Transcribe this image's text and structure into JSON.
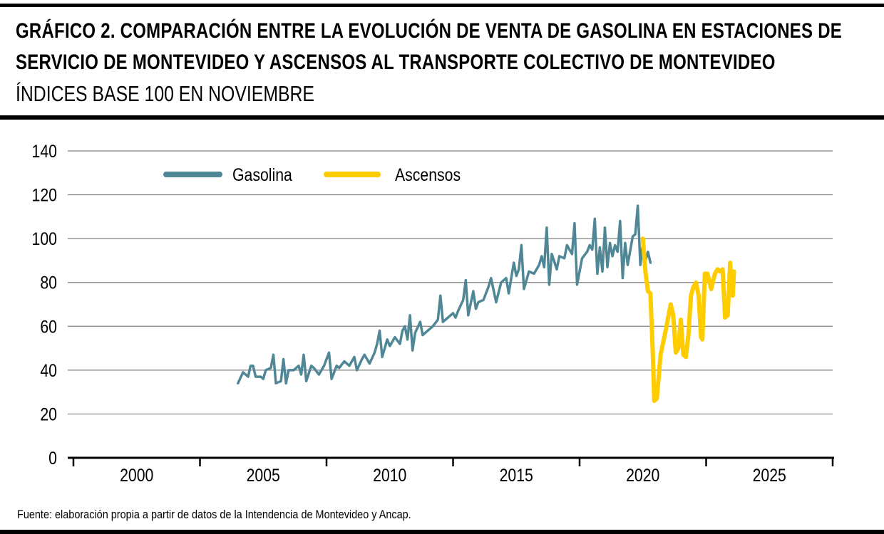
{
  "title": "GRÁFICO 2. COMPARACIÓN ENTRE LA EVOLUCIÓN DE VENTA DE GASOLINA EN ESTACIONES DE SERVICIO DE MONTEVIDEO Y ASCENSOS AL TRANSPORTE COLECTIVO DE MONTEVIDEO",
  "subtitle": "ÍNDICES BASE 100 EN NOVIEMBRE",
  "source": "Fuente: elaboración propia a partir de datos de la Intendencia de Montevideo y Ancap.",
  "colors": {
    "gasolina": "#4f8796",
    "ascensos": "#ffcc00",
    "grid": "#808080",
    "axis": "#000000"
  },
  "chart_data": {
    "type": "line",
    "title": "GRÁFICO 2. COMPARACIÓN ENTRE LA EVOLUCIÓN DE VENTA DE GASOLINA EN ESTACIONES DE SERVICIO DE MONTEVIDEO Y ASCENSOS AL TRANSPORTE COLECTIVO DE MONTEVIDEO",
    "subtitle": "ÍNDICES BASE 100 EN NOVIEMBRE",
    "xlabel": "",
    "ylabel": "",
    "xlim": [
      1997.5,
      2027.5
    ],
    "ylim": [
      0,
      140
    ],
    "x_ticks": [
      2000,
      2005,
      2010,
      2015,
      2020,
      2025
    ],
    "y_ticks": [
      0,
      20,
      40,
      60,
      80,
      100,
      120,
      140
    ],
    "grid": true,
    "legend_position": "top-left",
    "series": [
      {
        "name": "Gasolina",
        "color": "#4f8796",
        "points": [
          [
            2004.0,
            34
          ],
          [
            2004.2,
            39
          ],
          [
            2004.4,
            37
          ],
          [
            2004.5,
            42
          ],
          [
            2004.6,
            42
          ],
          [
            2004.7,
            37
          ],
          [
            2004.9,
            37
          ],
          [
            2005.0,
            36
          ],
          [
            2005.1,
            40
          ],
          [
            2005.3,
            41
          ],
          [
            2005.4,
            47
          ],
          [
            2005.5,
            34
          ],
          [
            2005.7,
            35
          ],
          [
            2005.8,
            45
          ],
          [
            2005.9,
            34
          ],
          [
            2006.0,
            40
          ],
          [
            2006.2,
            40
          ],
          [
            2006.4,
            42
          ],
          [
            2006.5,
            38
          ],
          [
            2006.6,
            47
          ],
          [
            2006.7,
            35
          ],
          [
            2006.9,
            42
          ],
          [
            2007.0,
            41
          ],
          [
            2007.2,
            38
          ],
          [
            2007.4,
            42
          ],
          [
            2007.6,
            48
          ],
          [
            2007.7,
            36
          ],
          [
            2007.9,
            42
          ],
          [
            2008.0,
            41
          ],
          [
            2008.2,
            44
          ],
          [
            2008.4,
            42
          ],
          [
            2008.6,
            46
          ],
          [
            2008.7,
            40
          ],
          [
            2008.9,
            45
          ],
          [
            2009.0,
            47
          ],
          [
            2009.2,
            43
          ],
          [
            2009.4,
            48
          ],
          [
            2009.5,
            52
          ],
          [
            2009.6,
            58
          ],
          [
            2009.7,
            46
          ],
          [
            2009.9,
            54
          ],
          [
            2010.0,
            51
          ],
          [
            2010.2,
            55
          ],
          [
            2010.4,
            52
          ],
          [
            2010.5,
            58
          ],
          [
            2010.6,
            60
          ],
          [
            2010.7,
            54
          ],
          [
            2010.8,
            65
          ],
          [
            2010.9,
            49
          ],
          [
            2011.0,
            57
          ],
          [
            2011.2,
            62
          ],
          [
            2011.3,
            56
          ],
          [
            2011.5,
            58
          ],
          [
            2011.7,
            60
          ],
          [
            2011.9,
            63
          ],
          [
            2012.0,
            74
          ],
          [
            2012.1,
            62
          ],
          [
            2012.3,
            64
          ],
          [
            2012.5,
            66
          ],
          [
            2012.6,
            64
          ],
          [
            2012.7,
            67
          ],
          [
            2012.9,
            72
          ],
          [
            2013.0,
            81
          ],
          [
            2013.1,
            65
          ],
          [
            2013.3,
            76
          ],
          [
            2013.4,
            68
          ],
          [
            2013.5,
            71
          ],
          [
            2013.7,
            72
          ],
          [
            2013.9,
            78
          ],
          [
            2014.0,
            82
          ],
          [
            2014.2,
            71
          ],
          [
            2014.4,
            80
          ],
          [
            2014.6,
            82
          ],
          [
            2014.7,
            75
          ],
          [
            2014.9,
            89
          ],
          [
            2015.0,
            83
          ],
          [
            2015.1,
            86
          ],
          [
            2015.2,
            97
          ],
          [
            2015.3,
            77
          ],
          [
            2015.5,
            85
          ],
          [
            2015.7,
            84
          ],
          [
            2015.9,
            88
          ],
          [
            2016.0,
            92
          ],
          [
            2016.1,
            87
          ],
          [
            2016.2,
            105
          ],
          [
            2016.3,
            79
          ],
          [
            2016.4,
            93
          ],
          [
            2016.6,
            86
          ],
          [
            2016.7,
            92
          ],
          [
            2016.9,
            91
          ],
          [
            2017.0,
            97
          ],
          [
            2017.2,
            93
          ],
          [
            2017.3,
            107
          ],
          [
            2017.4,
            79
          ],
          [
            2017.6,
            91
          ],
          [
            2017.8,
            94
          ],
          [
            2017.9,
            97
          ],
          [
            2018.0,
            95
          ],
          [
            2018.1,
            109
          ],
          [
            2018.2,
            84
          ],
          [
            2018.3,
            96
          ],
          [
            2018.4,
            85
          ],
          [
            2018.5,
            105
          ],
          [
            2018.6,
            87
          ],
          [
            2018.7,
            98
          ],
          [
            2018.8,
            92
          ],
          [
            2018.9,
            97
          ],
          [
            2019.0,
            94
          ],
          [
            2019.1,
            108
          ],
          [
            2019.2,
            82
          ],
          [
            2019.3,
            98
          ],
          [
            2019.4,
            88
          ],
          [
            2019.6,
            101
          ],
          [
            2019.7,
            102
          ],
          [
            2019.8,
            115
          ],
          [
            2019.9,
            88
          ],
          [
            2020.0,
            98
          ],
          [
            2020.1,
            90
          ],
          [
            2020.2,
            94
          ],
          [
            2020.3,
            89
          ]
        ]
      },
      {
        "name": "Ascensos",
        "color": "#ffcc00",
        "points": [
          [
            2020.0,
            100
          ],
          [
            2020.1,
            85
          ],
          [
            2020.2,
            76
          ],
          [
            2020.3,
            75
          ],
          [
            2020.4,
            45
          ],
          [
            2020.45,
            26
          ],
          [
            2020.55,
            27
          ],
          [
            2020.7,
            47
          ],
          [
            2020.9,
            58
          ],
          [
            2021.1,
            70
          ],
          [
            2021.2,
            65
          ],
          [
            2021.3,
            48
          ],
          [
            2021.4,
            50
          ],
          [
            2021.5,
            63
          ],
          [
            2021.6,
            47
          ],
          [
            2021.7,
            46
          ],
          [
            2021.8,
            56
          ],
          [
            2021.9,
            74
          ],
          [
            2022.0,
            78
          ],
          [
            2022.1,
            80
          ],
          [
            2022.2,
            74
          ],
          [
            2022.3,
            55
          ],
          [
            2022.35,
            54
          ],
          [
            2022.45,
            84
          ],
          [
            2022.55,
            84
          ],
          [
            2022.7,
            77
          ],
          [
            2022.85,
            84
          ],
          [
            2022.95,
            86
          ],
          [
            2023.05,
            85
          ],
          [
            2023.15,
            86
          ],
          [
            2023.25,
            64
          ],
          [
            2023.35,
            65
          ],
          [
            2023.45,
            89
          ],
          [
            2023.55,
            74
          ],
          [
            2023.6,
            85
          ]
        ]
      }
    ]
  }
}
